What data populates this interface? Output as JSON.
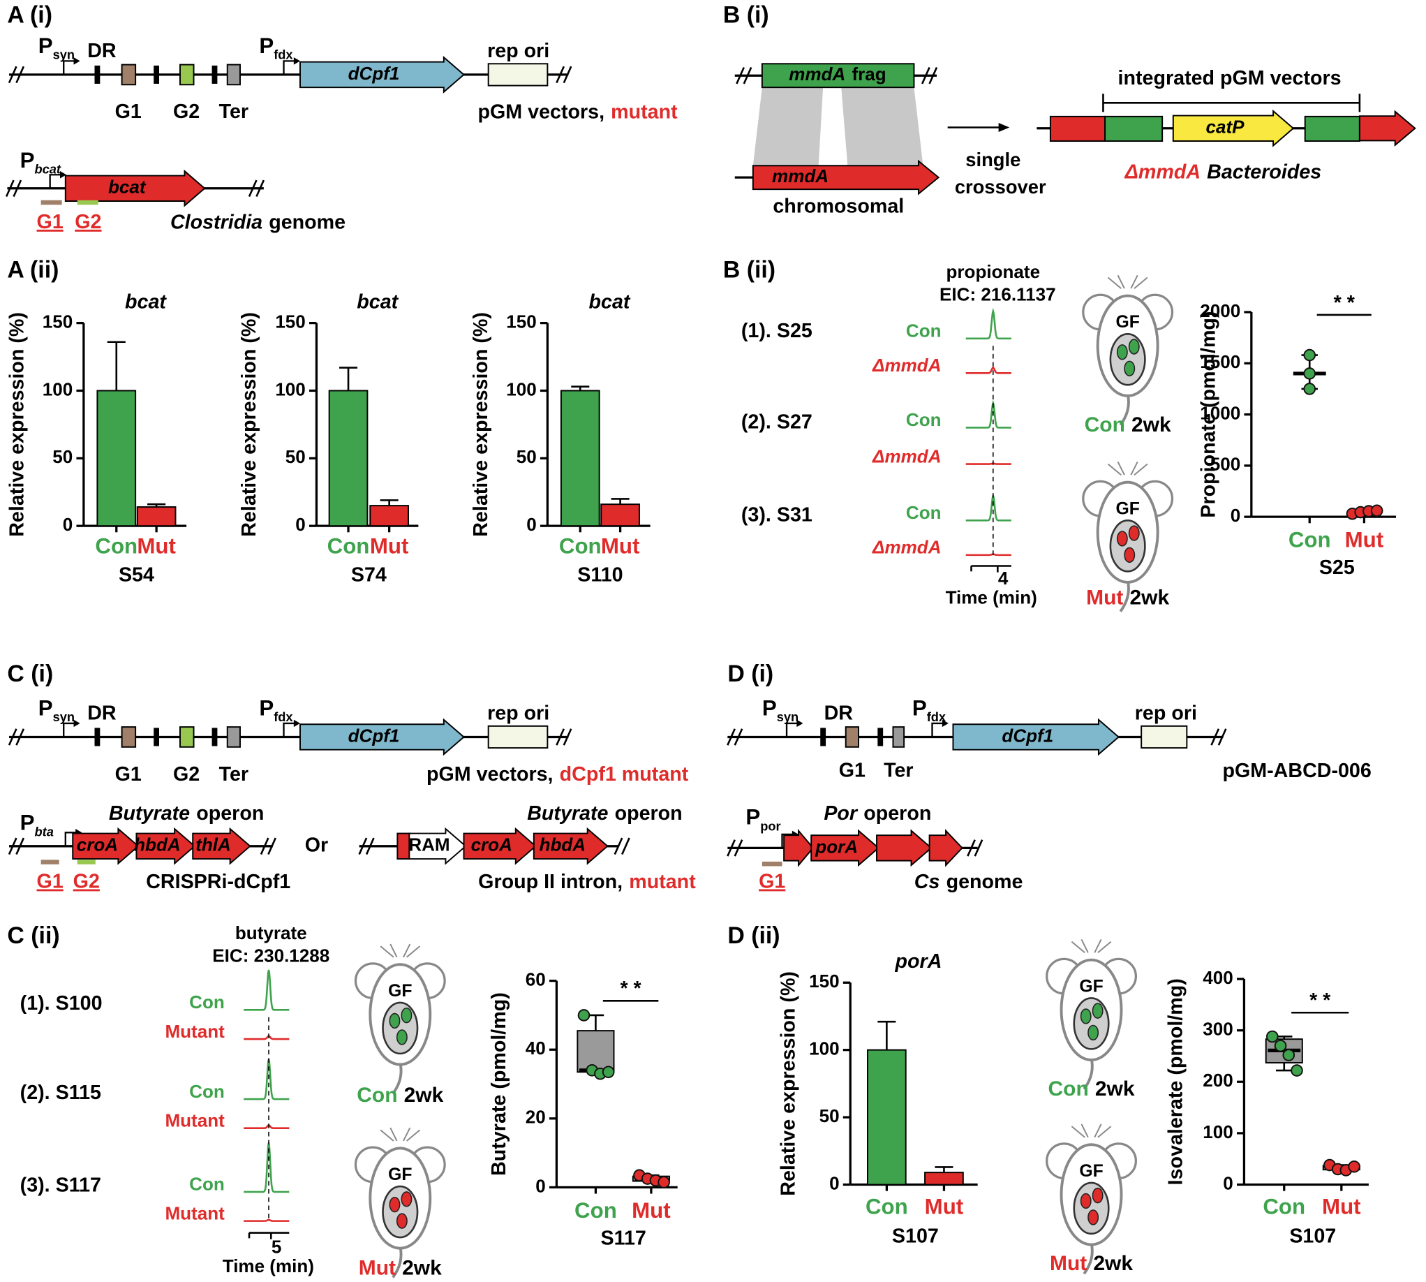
{
  "panel_labels": [
    "A (i)",
    "A (ii)",
    "B (i)",
    "B (ii)",
    "C (i)",
    "C (ii)",
    "D (i)",
    "D (ii)"
  ],
  "vectors": [
    {
      "psyn": {
        "p": "P",
        "sub": "syn"
      },
      "dr": "DR",
      "guides": [
        "G1",
        "G2"
      ],
      "ter": "Ter",
      "pfdx": {
        "p": "P",
        "sub": "fdx"
      },
      "gene": "dCpf1",
      "ori": "rep ori",
      "caption": [
        {
          "text": "pGM vectors,",
          "color": "#000000"
        },
        {
          "text": "mutant",
          "color": "#e02b2b"
        }
      ]
    },
    {
      "psyn": {
        "p": "P",
        "sub": "syn"
      },
      "dr": "DR",
      "guides": [
        "G1",
        "G2"
      ],
      "ter": "Ter",
      "pfdx": {
        "p": "P",
        "sub": "fdx"
      },
      "gene": "dCpf1",
      "ori": "rep ori",
      "caption": [
        {
          "text": "pGM vectors,",
          "color": "#000000"
        },
        {
          "text": "dCpf1 mutant",
          "color": "#e02b2b"
        }
      ]
    },
    {
      "psyn": {
        "p": "P",
        "sub": "syn"
      },
      "dr": "DR",
      "guides": [
        "G1"
      ],
      "ter": "Ter",
      "pfdx": {
        "p": "P",
        "sub": "fdx"
      },
      "gene": "dCpf1",
      "ori": "rep ori",
      "caption": [
        {
          "text": "pGM-ABCD-006",
          "color": "#000000"
        }
      ]
    }
  ],
  "genomes": [
    {
      "promoter": {
        "p": "P",
        "sub": "bcat"
      },
      "genes": [
        "bcat"
      ],
      "guides": [
        "G1",
        "G2"
      ],
      "caption": [
        {
          "text": "Clostridia",
          "italic": true,
          "color": "#000000"
        },
        {
          "text": "genome",
          "color": "#000000"
        }
      ]
    },
    {
      "promoter": {
        "p": "P",
        "sub": "bta"
      },
      "title": [
        {
          "text": "Butyrate",
          "italic": true,
          "color": "#000000"
        },
        {
          "text": "operon",
          "color": "#000000"
        }
      ],
      "genes": [
        "croA",
        "hbdA",
        "thlA"
      ],
      "guides": [
        "G1",
        "G2"
      ],
      "caption": [
        {
          "text": "CRISPRi-dCpf1",
          "color": "#000000"
        }
      ]
    },
    {
      "title": [
        {
          "text": "Butyrate",
          "italic": true,
          "color": "#000000"
        },
        {
          "text": "operon",
          "color": "#000000"
        }
      ],
      "genes": [
        "RAM",
        "croA",
        "hbdA"
      ],
      "caption": [
        {
          "text": "Group II intron,",
          "color": "#000000"
        },
        {
          "text": "mutant",
          "color": "#e02b2b"
        }
      ]
    },
    {
      "promoter": {
        "p": "P",
        "sub": "por"
      },
      "title": [
        {
          "text": "Por",
          "italic": true,
          "color": "#000000"
        },
        {
          "text": "operon",
          "color": "#000000"
        }
      ],
      "genes": [
        "porA"
      ],
      "guides": [
        "G1"
      ],
      "caption": [
        {
          "text": "Cs",
          "italic": true,
          "color": "#000000"
        },
        {
          "text": "genome",
          "color": "#000000"
        }
      ]
    }
  ],
  "alternative": "Or",
  "crossover": {
    "fragment": [
      {
        "text": "mmdA",
        "italic": true,
        "color": "#000000"
      },
      {
        "text": "frag",
        "color": "#000000"
      }
    ],
    "gene": "mmdA",
    "locus": "chromosomal",
    "step": [
      "single",
      "crossover"
    ],
    "construct_label": "integrated pGM vectors",
    "marker": "catP",
    "caption": [
      {
        "text": "ΔmmdA",
        "italic": true,
        "color": "#e02b2b"
      },
      {
        "text": "Bacteroides",
        "italic": true,
        "color": "#000000"
      }
    ]
  },
  "mice": [
    {
      "gf": "GF",
      "groups": [
        {
          "name": "Con",
          "color": "#3fa34d",
          "time": "2wk"
        },
        {
          "name": "Mut",
          "color": "#e02b2b",
          "time": "2wk"
        }
      ]
    },
    {
      "gf": "GF",
      "groups": [
        {
          "name": "Con",
          "color": "#3fa34d",
          "time": "2wk"
        },
        {
          "name": "Mut",
          "color": "#e02b2b",
          "time": "2wk"
        }
      ]
    },
    {
      "gf": "GF",
      "groups": [
        {
          "name": "Con",
          "color": "#3fa34d",
          "time": "2wk"
        },
        {
          "name": "Mut",
          "color": "#e02b2b",
          "time": "2wk"
        }
      ]
    }
  ],
  "chart_data": [
    {
      "type": "bar",
      "title": "bcat",
      "ylabel": "Relative expression (%)",
      "categories": [
        "Con",
        "Mut"
      ],
      "colors": [
        "#3fa34d",
        "#e02b2b"
      ],
      "values": [
        100,
        14
      ],
      "errors": [
        36,
        2
      ],
      "xlabel": "S54",
      "ylim": [
        0,
        150
      ],
      "yticks": [
        0,
        50,
        100,
        150
      ]
    },
    {
      "type": "bar",
      "title": "bcat",
      "ylabel": "Relative expression (%)",
      "categories": [
        "Con",
        "Mut"
      ],
      "colors": [
        "#3fa34d",
        "#e02b2b"
      ],
      "values": [
        100,
        15
      ],
      "errors": [
        17,
        4
      ],
      "xlabel": "S74",
      "ylim": [
        0,
        150
      ],
      "yticks": [
        0,
        50,
        100,
        150
      ]
    },
    {
      "type": "bar",
      "title": "bcat",
      "ylabel": "Relative expression (%)",
      "categories": [
        "Con",
        "Mut"
      ],
      "colors": [
        "#3fa34d",
        "#e02b2b"
      ],
      "values": [
        100,
        16
      ],
      "errors": [
        3,
        4
      ],
      "xlabel": "S110",
      "ylim": [
        0,
        150
      ],
      "yticks": [
        0,
        50,
        100,
        150
      ]
    },
    {
      "type": "chromatogram",
      "title": "propionate",
      "subtitle": "EIC: 216.1137",
      "xlabel": "Time (min)",
      "xlim": [
        3.3,
        4.3
      ],
      "xticks": [
        4
      ],
      "peak_x": 3.9,
      "samples": [
        {
          "label": "(1). S25",
          "series": [
            {
              "name": "Con",
              "color": "#3fa34d",
              "peak": 1.0
            },
            {
              "name": "ΔmmdA",
              "italic": true,
              "color": "#e02b2b",
              "peak": 0.2
            }
          ]
        },
        {
          "label": "(2). S27",
          "series": [
            {
              "name": "Con",
              "color": "#3fa34d",
              "peak": 0.9
            },
            {
              "name": "ΔmmdA",
              "italic": true,
              "color": "#e02b2b",
              "peak": 0.02
            }
          ]
        },
        {
          "label": "(3). S31",
          "series": [
            {
              "name": "Con",
              "color": "#3fa34d",
              "peak": 0.9
            },
            {
              "name": "ΔmmdA",
              "italic": true,
              "color": "#e02b2b",
              "peak": 0.03
            }
          ]
        }
      ]
    },
    {
      "type": "box",
      "ylabel": "Propionate (pmol/mg)",
      "categories": [
        "Con",
        "Mut"
      ],
      "colors": [
        "#3fa34d",
        "#e02b2b"
      ],
      "xlabel": "S25",
      "ylim": [
        0,
        2000
      ],
      "yticks": [
        0,
        500,
        1000,
        1500,
        2000
      ],
      "significance": "* *",
      "box_fill": "#9a9a9a",
      "boxes": [
        {
          "points": [
            1580,
            1400,
            1250
          ],
          "min": 1250,
          "median": 1400,
          "max": 1580
        },
        {
          "points": [
            30,
            45,
            55,
            60
          ],
          "min": 30,
          "median": 50,
          "max": 60
        }
      ]
    },
    {
      "type": "chromatogram",
      "title": "butyrate",
      "subtitle": "EIC: 230.1288",
      "xlabel": "Time (min)",
      "xlim": [
        4.4,
        5.4
      ],
      "xticks": [
        5
      ],
      "peak_x": 4.95,
      "samples": [
        {
          "label": "(1). S100",
          "series": [
            {
              "name": "Con",
              "color": "#3fa34d",
              "peak": 1.1
            },
            {
              "name": "Mutant",
              "color": "#e02b2b",
              "peak": 0.08
            }
          ]
        },
        {
          "label": "(2). S115",
          "series": [
            {
              "name": "Con",
              "color": "#3fa34d",
              "peak": 1.1
            },
            {
              "name": "Mutant",
              "color": "#e02b2b",
              "peak": 0.08
            }
          ]
        },
        {
          "label": "(3). S117",
          "series": [
            {
              "name": "Con",
              "color": "#3fa34d",
              "peak": 1.35
            },
            {
              "name": "Mutant",
              "color": "#e02b2b",
              "peak": 0.03
            }
          ]
        }
      ]
    },
    {
      "type": "box",
      "ylabel": "Butyrate (pmol/mg)",
      "categories": [
        "Con",
        "Mut"
      ],
      "colors": [
        "#3fa34d",
        "#e02b2b"
      ],
      "xlabel": "S117",
      "ylim": [
        0,
        60
      ],
      "yticks": [
        0,
        20,
        40,
        60
      ],
      "significance": "* *",
      "box_fill": "#9a9a9a",
      "boxes": [
        {
          "points": [
            50,
            34,
            33,
            33.5
          ],
          "min": 33,
          "q1": 33.5,
          "median": 34,
          "q3": 45.5,
          "max": 50
        },
        {
          "points": [
            3.5,
            2.5,
            2,
            1.5
          ],
          "min": 1.5,
          "q1": 1.8,
          "median": 2.3,
          "q3": 3.2,
          "max": 3.5
        }
      ]
    },
    {
      "type": "bar",
      "title": "porA",
      "ylabel": "Relative expression (%)",
      "categories": [
        "Con",
        "Mut"
      ],
      "colors": [
        "#3fa34d",
        "#e02b2b"
      ],
      "values": [
        100,
        9
      ],
      "errors": [
        21,
        4
      ],
      "xlabel": "S107",
      "ylim": [
        0,
        150
      ],
      "yticks": [
        0,
        50,
        100,
        150
      ]
    },
    {
      "type": "box",
      "ylabel": "Isovalerate (pmol/mg)",
      "categories": [
        "Con",
        "Mut"
      ],
      "colors": [
        "#3fa34d",
        "#e02b2b"
      ],
      "xlabel": "S107",
      "ylim": [
        0,
        400
      ],
      "yticks": [
        0,
        100,
        200,
        300,
        400
      ],
      "significance": "* *",
      "box_fill": "#9a9a9a",
      "boxes": [
        {
          "points": [
            288,
            270,
            252,
            222
          ],
          "min": 222,
          "q1": 237,
          "median": 261,
          "q3": 283,
          "max": 288
        },
        {
          "points": [
            38,
            30,
            28,
            35
          ],
          "min": 28,
          "q1": 29,
          "median": 32,
          "q3": 37,
          "max": 38
        }
      ]
    }
  ]
}
